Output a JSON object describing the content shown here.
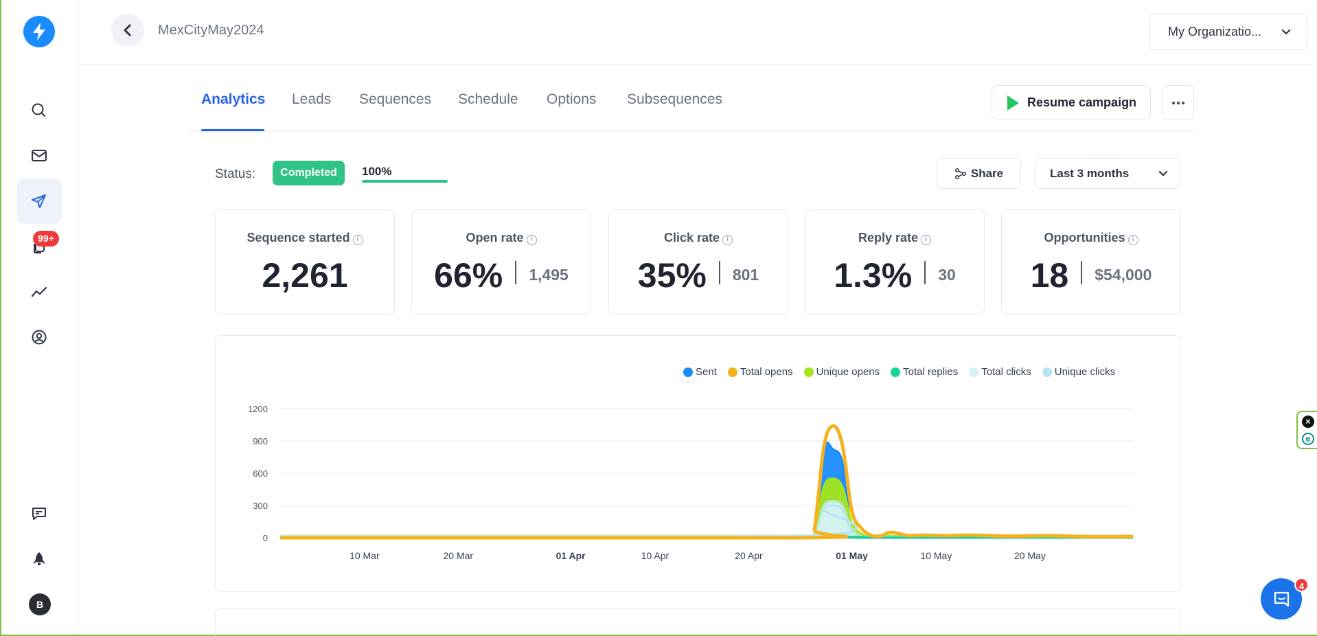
{
  "header": {
    "campaign_title": "MexCityMay2024",
    "org_selector": "My Organizatio..."
  },
  "sidebar": {
    "notification_count": "99+",
    "avatar_initial": "B",
    "icons": [
      "search-icon",
      "mail-icon",
      "send-icon",
      "copy-icon",
      "trend-icon",
      "user-circle-icon",
      "message-edit-icon",
      "rocket-icon"
    ]
  },
  "tabs": [
    {
      "label": "Analytics",
      "active": true
    },
    {
      "label": "Leads",
      "active": false
    },
    {
      "label": "Sequences",
      "active": false
    },
    {
      "label": "Schedule",
      "active": false
    },
    {
      "label": "Options",
      "active": false
    },
    {
      "label": "Subsequences",
      "active": false
    }
  ],
  "actions": {
    "resume": "Resume campaign",
    "share": "Share",
    "range": "Last 3 months"
  },
  "status": {
    "label": "Status:",
    "badge": "Completed",
    "progress_text": "100%",
    "progress": 1.0
  },
  "stats": [
    {
      "label": "Sequence started",
      "value": "2,261",
      "sub": ""
    },
    {
      "label": "Open rate",
      "value": "66%",
      "sub": "1,495"
    },
    {
      "label": "Click rate",
      "value": "35%",
      "sub": "801"
    },
    {
      "label": "Reply rate",
      "value": "1.3%",
      "sub": "30"
    },
    {
      "label": "Opportunities",
      "value": "18",
      "sub": "$54,000"
    }
  ],
  "chat": {
    "badge": "4"
  },
  "colors": {
    "accent": "#2563eb",
    "success": "#2fc486",
    "sent": "#1a8cff",
    "total_opens": "#f5b21e",
    "unique_opens": "#a3e61a",
    "total_replies": "#17d49a",
    "total_clicks": "#d6f1f8",
    "unique_clicks": "#b5e4f5"
  },
  "chart_data": {
    "type": "area",
    "ylim": [
      0,
      1200
    ],
    "yticks": [
      0,
      300,
      600,
      900,
      1200
    ],
    "grid": true,
    "legend_position": "top-right",
    "x_start": "2024-03-01",
    "x_end": "2024-05-31",
    "xticks": [
      {
        "date": "2024-03-10",
        "label": "10 Mar",
        "bold": false
      },
      {
        "date": "2024-03-20",
        "label": "20 Mar",
        "bold": false
      },
      {
        "date": "2024-04-01",
        "label": "01 Apr",
        "bold": true
      },
      {
        "date": "2024-04-10",
        "label": "10 Apr",
        "bold": false
      },
      {
        "date": "2024-04-20",
        "label": "20 Apr",
        "bold": false
      },
      {
        "date": "2024-05-01",
        "label": "01 May",
        "bold": true
      },
      {
        "date": "2024-05-10",
        "label": "10 May",
        "bold": false
      },
      {
        "date": "2024-05-20",
        "label": "20 May",
        "bold": false
      }
    ],
    "series": [
      {
        "name": "Sent",
        "color": "#1a8cff",
        "fill": true,
        "points": [
          [
            "2024-03-01",
            0
          ],
          [
            "2024-04-26",
            0
          ],
          [
            "2024-04-27",
            20
          ],
          [
            "2024-04-28",
            820
          ],
          [
            "2024-04-29",
            820
          ],
          [
            "2024-04-30",
            700
          ],
          [
            "2024-05-01",
            50
          ],
          [
            "2024-05-02",
            0
          ],
          [
            "2024-05-31",
            0
          ]
        ]
      },
      {
        "name": "Total opens",
        "color": "#f5b21e",
        "fill": false,
        "points": [
          [
            "2024-03-01",
            0
          ],
          [
            "2024-04-26",
            0
          ],
          [
            "2024-04-27",
            80
          ],
          [
            "2024-04-28",
            840
          ],
          [
            "2024-04-29",
            1040
          ],
          [
            "2024-04-30",
            860
          ],
          [
            "2024-05-01",
            250
          ],
          [
            "2024-05-02",
            90
          ],
          [
            "2024-05-03",
            25
          ],
          [
            "2024-05-04",
            15
          ],
          [
            "2024-05-05",
            50
          ],
          [
            "2024-05-06",
            40
          ],
          [
            "2024-05-07",
            20
          ],
          [
            "2024-05-09",
            25
          ],
          [
            "2024-05-11",
            20
          ],
          [
            "2024-05-14",
            25
          ],
          [
            "2024-05-18",
            15
          ],
          [
            "2024-05-22",
            20
          ],
          [
            "2024-05-26",
            10
          ],
          [
            "2024-05-31",
            10
          ]
        ]
      },
      {
        "name": "Unique opens",
        "color": "#a3e61a",
        "fill": true,
        "points": [
          [
            "2024-03-01",
            0
          ],
          [
            "2024-04-26",
            0
          ],
          [
            "2024-04-27",
            40
          ],
          [
            "2024-04-28",
            470
          ],
          [
            "2024-04-29",
            550
          ],
          [
            "2024-04-30",
            470
          ],
          [
            "2024-05-01",
            140
          ],
          [
            "2024-05-02",
            40
          ],
          [
            "2024-05-03",
            10
          ],
          [
            "2024-05-05",
            15
          ],
          [
            "2024-05-31",
            5
          ]
        ]
      },
      {
        "name": "Total replies",
        "color": "#17d49a",
        "fill": false,
        "points": [
          [
            "2024-03-01",
            0
          ],
          [
            "2024-04-28",
            5
          ],
          [
            "2024-04-29",
            10
          ],
          [
            "2024-04-30",
            8
          ],
          [
            "2024-05-01",
            3
          ],
          [
            "2024-05-31",
            0
          ]
        ]
      },
      {
        "name": "Total clicks",
        "color": "#d6f1f8",
        "fill": true,
        "points": [
          [
            "2024-03-01",
            0
          ],
          [
            "2024-04-26",
            0
          ],
          [
            "2024-04-27",
            30
          ],
          [
            "2024-04-28",
            300
          ],
          [
            "2024-04-29",
            340
          ],
          [
            "2024-04-30",
            300
          ],
          [
            "2024-05-01",
            80
          ],
          [
            "2024-05-02",
            20
          ],
          [
            "2024-05-03",
            5
          ],
          [
            "2024-05-31",
            5
          ]
        ]
      },
      {
        "name": "Unique clicks",
        "color": "#b5e4f5",
        "fill": false,
        "points": [
          [
            "2024-03-01",
            0
          ],
          [
            "2024-04-27",
            20
          ],
          [
            "2024-04-28",
            260
          ],
          [
            "2024-04-29",
            300
          ],
          [
            "2024-04-30",
            260
          ],
          [
            "2024-05-01",
            60
          ],
          [
            "2024-05-02",
            10
          ],
          [
            "2024-05-31",
            0
          ]
        ]
      }
    ]
  }
}
